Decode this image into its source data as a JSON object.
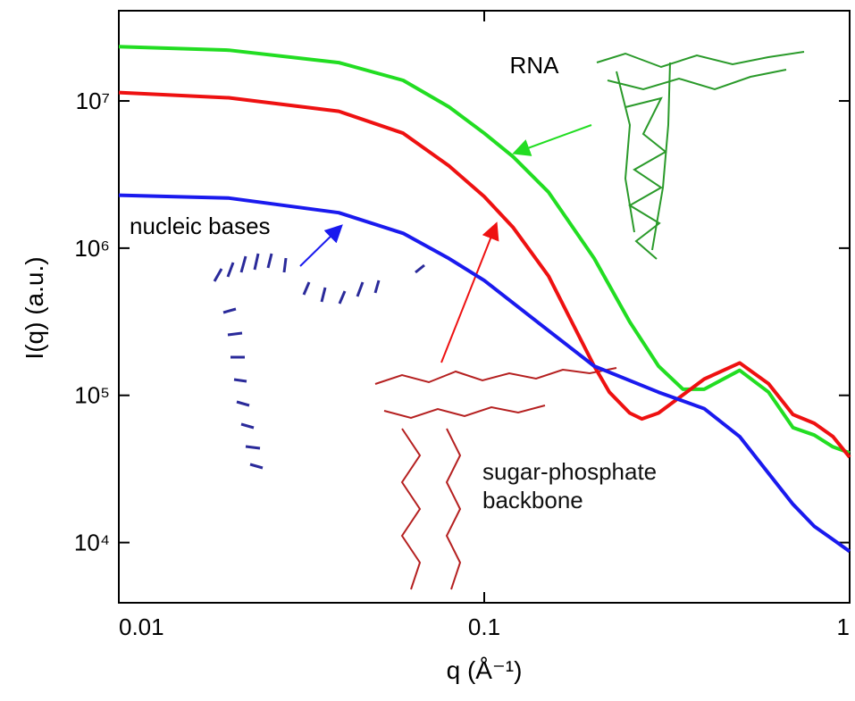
{
  "chart_data": {
    "type": "line",
    "xlabel": "q (Å⁻¹)",
    "ylabel": "I(q) (a.u.)",
    "xscale": "log",
    "yscale": "log",
    "xlim": [
      0.01,
      1
    ],
    "xticks": [
      0.01,
      0.1,
      1
    ],
    "ylim": [
      3900,
      41000000
    ],
    "yticks": [
      {
        "value": 10000,
        "label": "10⁴"
      },
      {
        "value": 100000,
        "label": "10⁵"
      },
      {
        "value": 1000000,
        "label": "10⁶"
      },
      {
        "value": 10000000,
        "label": "10⁷"
      }
    ],
    "series": [
      {
        "name": "RNA",
        "color": "#22dd22",
        "x": [
          0.01,
          0.02,
          0.04,
          0.06,
          0.08,
          0.1,
          0.12,
          0.15,
          0.2,
          0.25,
          0.3,
          0.35,
          0.4,
          0.5,
          0.6,
          0.7,
          0.8,
          0.9,
          1.0
        ],
        "values": [
          23400000,
          22100000,
          18200000,
          13800000,
          9120000,
          6030000,
          4170000,
          2400000,
          851000,
          316000,
          158000,
          110000,
          110000,
          148000,
          105000,
          60300,
          53700,
          44700,
          40700
        ]
      },
      {
        "name": "sugar-phosphate backbone",
        "color": "#ee1111",
        "x": [
          0.01,
          0.02,
          0.04,
          0.06,
          0.08,
          0.1,
          0.12,
          0.15,
          0.2,
          0.22,
          0.25,
          0.27,
          0.3,
          0.4,
          0.5,
          0.6,
          0.7,
          0.8,
          0.9,
          1.0
        ],
        "values": [
          11400000,
          10500000,
          8510000,
          6030000,
          3630000,
          2240000,
          1380000,
          646000,
          158000,
          105000,
          75900,
          69200,
          75900,
          129000,
          166000,
          120000,
          74100,
          64600,
          52500,
          38000
        ]
      },
      {
        "name": "nucleic bases",
        "color": "#1a1aee",
        "x": [
          0.01,
          0.02,
          0.04,
          0.06,
          0.08,
          0.1,
          0.15,
          0.2,
          0.3,
          0.4,
          0.5,
          0.6,
          0.7,
          0.8,
          0.9,
          1.0
        ],
        "values": [
          2290000,
          2190000,
          1740000,
          1260000,
          851000,
          603000,
          275000,
          158000,
          105000,
          81300,
          52500,
          29500,
          18200,
          12900,
          10500,
          8710
        ]
      }
    ]
  }
}
